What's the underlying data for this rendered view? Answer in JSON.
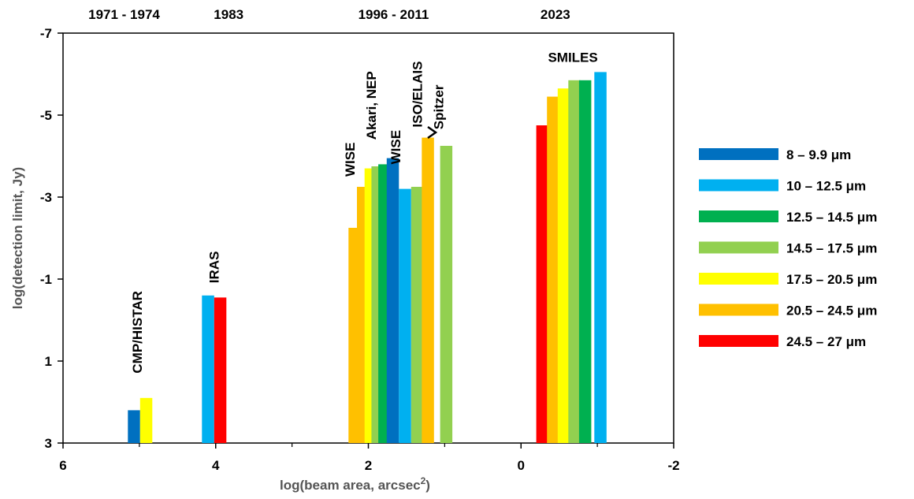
{
  "chart_data": {
    "type": "bar",
    "xlabel": "log(beam area, arcsec",
    "xlabel_sup": "2",
    "xlabel_end": ")",
    "ylabel": "log(detection limit, Jy)",
    "xlim": [
      6,
      -2
    ],
    "ylim": [
      3,
      -7
    ],
    "y_axis": "inverted",
    "xticks": [
      6,
      4,
      2,
      0,
      -2
    ],
    "xtick_labels": [
      "6",
      "4",
      "2",
      "0",
      "-2"
    ],
    "yticks": [
      3,
      1,
      -1,
      -3,
      -5,
      -7
    ],
    "ytick_labels": [
      "3",
      "1",
      "-1",
      "-3",
      "-5",
      "-7"
    ],
    "bar_width": 0.16,
    "eras": [
      {
        "label": "1971 - 1974",
        "x": 5.2
      },
      {
        "label": "1983",
        "x": 3.83
      },
      {
        "label": "1996 - 2011",
        "x": 1.67
      },
      {
        "label": "2023",
        "x": -0.45
      }
    ],
    "series": [
      {
        "name": " 8 – 9.9 μm",
        "color": "#0070C0"
      },
      {
        "name": "10 – 12.5 μm",
        "color": "#00B0F0"
      },
      {
        "name": "12.5 – 14.5 μm",
        "color": "#00B050"
      },
      {
        "name": "14.5 – 17.5 μm",
        "color": "#92D050"
      },
      {
        "name": "17.5 – 20.5 μm",
        "color": "#FFFF00"
      },
      {
        "name": "20.5 – 24.5 μm",
        "color": "#FFC000"
      },
      {
        "name": "24.5 – 27 μm",
        "color": "#FF0000"
      }
    ],
    "bars": [
      {
        "x": 5.07,
        "y": 2.2,
        "series": 0
      },
      {
        "x": 4.91,
        "y": 1.9,
        "series": 4
      },
      {
        "x": 4.1,
        "y": -0.6,
        "series": 1
      },
      {
        "x": 3.94,
        "y": -0.55,
        "series": 6
      },
      {
        "x": 2.18,
        "y": -2.25,
        "series": 5
      },
      {
        "x": 2.07,
        "y": -3.25,
        "series": 5
      },
      {
        "x": 1.97,
        "y": -3.7,
        "series": 4
      },
      {
        "x": 1.88,
        "y": -3.75,
        "series": 3
      },
      {
        "x": 1.79,
        "y": -3.8,
        "series": 2
      },
      {
        "x": 1.68,
        "y": -3.95,
        "series": 0
      },
      {
        "x": 1.52,
        "y": -3.2,
        "series": 1
      },
      {
        "x": 1.36,
        "y": -3.25,
        "series": 3
      },
      {
        "x": 1.22,
        "y": -4.45,
        "series": 5
      },
      {
        "x": 0.98,
        "y": -4.25,
        "series": 3
      },
      {
        "x": -0.28,
        "y": -4.75,
        "series": 6
      },
      {
        "x": -0.42,
        "y": -5.45,
        "series": 5
      },
      {
        "x": -0.56,
        "y": -5.65,
        "series": 4
      },
      {
        "x": -0.7,
        "y": -5.85,
        "series": 3
      },
      {
        "x": -0.84,
        "y": -5.85,
        "series": 2
      },
      {
        "x": -1.04,
        "y": -6.05,
        "series": 1
      }
    ],
    "group_labels": [
      {
        "text": "CMP/HISTAR",
        "x": 4.97,
        "y": 1.3,
        "rotate": true
      },
      {
        "text": "IRAS",
        "x": 3.96,
        "y": -0.9,
        "rotate": true
      },
      {
        "text": "WISE",
        "x": 2.18,
        "y": -3.5,
        "rotate": true
      },
      {
        "text": "Akari, NEP",
        "x": 1.9,
        "y": -4.4,
        "rotate": true
      },
      {
        "text": "WISE",
        "x": 1.58,
        "y": -3.8,
        "rotate": true
      },
      {
        "text": "ISO/ELAIS",
        "x": 1.3,
        "y": -4.7,
        "rotate": true
      },
      {
        "text": "Spitzer",
        "x": 1.02,
        "y": -4.65,
        "rotate": true
      },
      {
        "text": "SMILES",
        "x": -0.68,
        "y": -6.3,
        "rotate": false
      }
    ]
  }
}
